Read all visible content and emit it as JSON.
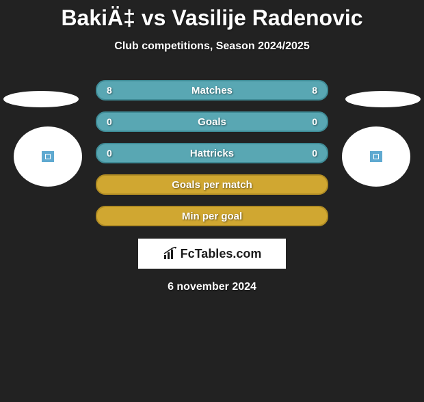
{
  "title": "BakiÄ‡ vs Vasilije Radenovic",
  "subtitle": "Club competitions, Season 2024/2025",
  "colors": {
    "row_teal_fill": "#59a7b3",
    "row_teal_border": "#3f8b96",
    "row_gold_fill": "#d0a731",
    "row_gold_border": "#b08c24",
    "background": "#222222",
    "text": "#ffffff"
  },
  "rows": [
    {
      "label": "Matches",
      "left": "8",
      "right": "8",
      "style": "teal"
    },
    {
      "label": "Goals",
      "left": "0",
      "right": "0",
      "style": "teal"
    },
    {
      "label": "Hattricks",
      "left": "0",
      "right": "0",
      "style": "teal"
    },
    {
      "label": "Goals per match",
      "left": "",
      "right": "",
      "style": "gold"
    },
    {
      "label": "Min per goal",
      "left": "",
      "right": "",
      "style": "gold"
    }
  ],
  "footer_logo_text": "FcTables.com",
  "date_text": "6 november 2024"
}
